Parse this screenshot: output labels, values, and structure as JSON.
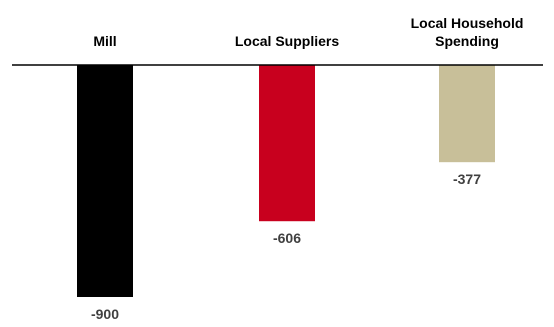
{
  "chart_data": {
    "type": "bar",
    "categories": [
      [
        "Mill"
      ],
      [
        "Local Suppliers"
      ],
      [
        "Local Household",
        "Spending"
      ]
    ],
    "values": [
      -900,
      -606,
      -377
    ],
    "value_labels": [
      "-900",
      "-606",
      "-377"
    ],
    "colors": [
      "#000000",
      "#c8001e",
      "#c8bf99"
    ],
    "ylim": [
      -900,
      0
    ],
    "baseline": 0,
    "axis_color": "#000000",
    "category_axis_position": "top",
    "value_labels_position": "below-bars",
    "grid": false,
    "legend": "none",
    "title": "",
    "xlabel": "",
    "ylabel": ""
  }
}
